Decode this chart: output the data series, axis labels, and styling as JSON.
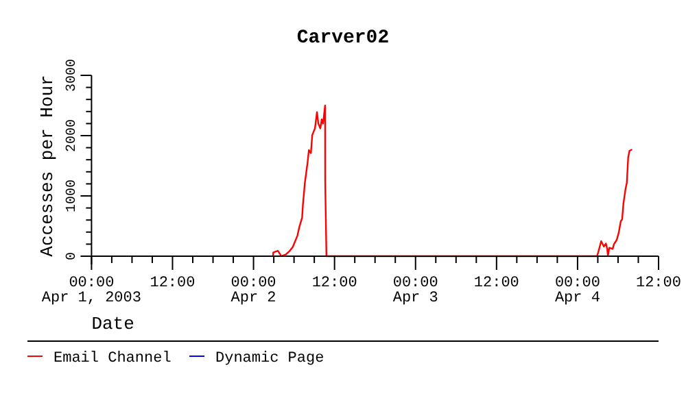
{
  "chart_data": {
    "type": "line",
    "title": "Carver02",
    "xlabel": "Date",
    "ylabel": "Accesses per Hour",
    "xlim": [
      "2003-04-01T00:00",
      "2003-04-04T12:00"
    ],
    "xticks": [
      {
        "value": "2003-04-01T00:00",
        "label": "00:00\nApr 1, 2003"
      },
      {
        "value": "2003-04-01T03:00",
        "label": null
      },
      {
        "value": "2003-04-01T06:00",
        "label": null
      },
      {
        "value": "2003-04-01T09:00",
        "label": null
      },
      {
        "value": "2003-04-01T12:00",
        "label": "12:00"
      },
      {
        "value": "2003-04-01T15:00",
        "label": null
      },
      {
        "value": "2003-04-01T18:00",
        "label": null
      },
      {
        "value": "2003-04-01T21:00",
        "label": null
      },
      {
        "value": "2003-04-02T00:00",
        "label": "00:00\nApr 2"
      },
      {
        "value": "2003-04-02T03:00",
        "label": null
      },
      {
        "value": "2003-04-02T06:00",
        "label": null
      },
      {
        "value": "2003-04-02T09:00",
        "label": null
      },
      {
        "value": "2003-04-02T12:00",
        "label": "12:00"
      },
      {
        "value": "2003-04-02T15:00",
        "label": null
      },
      {
        "value": "2003-04-02T18:00",
        "label": null
      },
      {
        "value": "2003-04-02T21:00",
        "label": null
      },
      {
        "value": "2003-04-03T00:00",
        "label": "00:00\nApr 3"
      },
      {
        "value": "2003-04-03T03:00",
        "label": null
      },
      {
        "value": "2003-04-03T06:00",
        "label": null
      },
      {
        "value": "2003-04-03T09:00",
        "label": null
      },
      {
        "value": "2003-04-03T12:00",
        "label": "12:00"
      },
      {
        "value": "2003-04-03T15:00",
        "label": null
      },
      {
        "value": "2003-04-03T18:00",
        "label": null
      },
      {
        "value": "2003-04-03T21:00",
        "label": null
      },
      {
        "value": "2003-04-04T00:00",
        "label": "00:00\nApr 4"
      },
      {
        "value": "2003-04-04T03:00",
        "label": null
      },
      {
        "value": "2003-04-04T06:00",
        "label": null
      },
      {
        "value": "2003-04-04T09:00",
        "label": null
      },
      {
        "value": "2003-04-04T12:00",
        "label": "12:00"
      }
    ],
    "ylim": [
      0,
      3000
    ],
    "yticks": [
      0,
      {
        "value": 200,
        "label": null
      },
      {
        "value": 400,
        "label": null
      },
      {
        "value": 600,
        "label": null
      },
      {
        "value": 800,
        "label": null
      },
      1000,
      {
        "value": 1200,
        "label": null
      },
      {
        "value": 1400,
        "label": null
      },
      {
        "value": 1600,
        "label": null
      },
      {
        "value": 1800,
        "label": null
      },
      2000,
      {
        "value": 2200,
        "label": null
      },
      {
        "value": 2400,
        "label": null
      },
      {
        "value": 2600,
        "label": null
      },
      {
        "value": 2800,
        "label": null
      },
      3000
    ],
    "grid": false,
    "legend": "bottom",
    "marker": "none",
    "line_style": "solid",
    "series": [
      {
        "name": "Email Channel",
        "color": "#ff0000",
        "x": [
          "2003-04-02T02:54",
          "2003-04-02T02:55",
          "2003-04-02T03:36",
          "2003-04-02T03:54",
          "2003-04-02T04:06",
          "2003-04-02T04:48",
          "2003-04-02T05:18",
          "2003-04-02T05:48",
          "2003-04-02T06:06",
          "2003-04-02T06:30",
          "2003-04-02T06:48",
          "2003-04-02T07:12",
          "2003-04-02T07:18",
          "2003-04-02T07:36",
          "2003-04-02T08:00",
          "2003-04-02T08:12",
          "2003-04-02T08:30",
          "2003-04-02T08:42",
          "2003-04-02T09:06",
          "2003-04-02T09:24",
          "2003-04-02T09:36",
          "2003-04-02T09:54",
          "2003-04-02T10:06",
          "2003-04-02T10:18",
          "2003-04-02T10:36",
          "2003-04-02T10:37",
          "2003-04-02T10:48",
          "2003-04-04T02:54",
          "2003-04-04T03:12",
          "2003-04-04T03:30",
          "2003-04-04T03:54",
          "2003-04-04T04:12",
          "2003-04-04T04:24",
          "2003-04-04T04:30",
          "2003-04-04T04:42",
          "2003-04-04T05:12",
          "2003-04-04T05:24",
          "2003-04-04T05:48",
          "2003-04-04T06:06",
          "2003-04-04T06:24",
          "2003-04-04T06:36",
          "2003-04-04T06:48",
          "2003-04-04T07:06",
          "2003-04-04T07:18",
          "2003-04-04T07:30",
          "2003-04-04T07:42",
          "2003-04-04T08:06"
        ],
        "values": [
          0,
          60,
          90,
          40,
          0,
          30,
          80,
          150,
          230,
          340,
          490,
          640,
          830,
          1210,
          1550,
          1760,
          1710,
          2010,
          2120,
          2390,
          2200,
          2120,
          2270,
          2200,
          2500,
          1250,
          0,
          0,
          120,
          250,
          160,
          210,
          120,
          0,
          140,
          120,
          200,
          270,
          390,
          580,
          610,
          880,
          1110,
          1220,
          1640,
          1750,
          1770
        ]
      },
      {
        "name": "Dynamic Page",
        "color": "#0000ff"
      }
    ]
  }
}
